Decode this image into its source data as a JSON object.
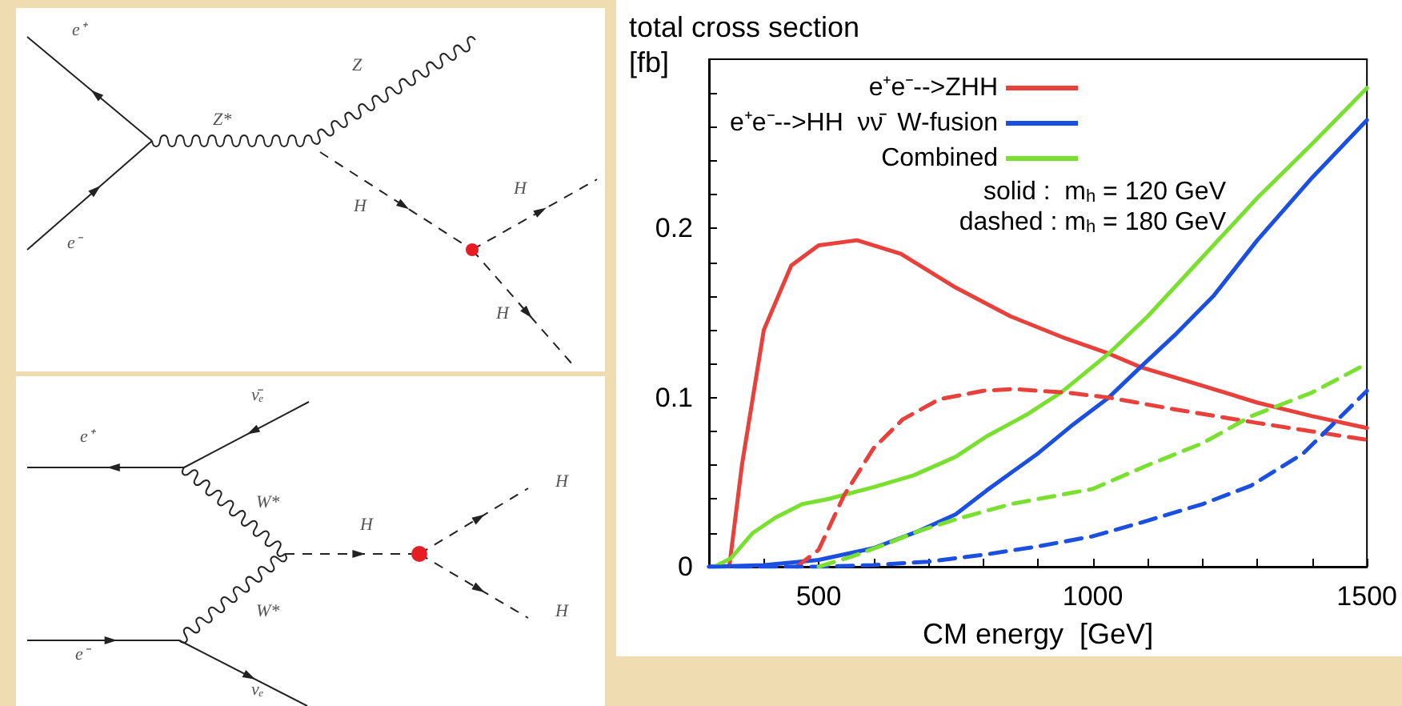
{
  "chart_data": [
    {
      "type": "other",
      "annotations": [
        "e⁺",
        "e⁻",
        "Z*",
        "Z",
        "H",
        "H",
        "H",
        "ν̄ₑ",
        "e⁺",
        "W*",
        "H",
        "H",
        "H",
        "W*",
        "e⁻",
        "νₑ"
      ]
    },
    {
      "type": "line",
      "ylabel": "total cross section [fb]",
      "xlabel": "CM energy  [GeV]",
      "xlim": [
        300,
        1500
      ],
      "ylim": [
        0,
        0.3
      ],
      "xticks": [
        {
          "value": 400,
          "label": null
        },
        500,
        {
          "value": 600,
          "label": null
        },
        {
          "value": 700,
          "label": null
        },
        {
          "value": 800,
          "label": null
        },
        {
          "value": 900,
          "label": null
        },
        1000,
        {
          "value": 1100,
          "label": null
        },
        {
          "value": 1200,
          "label": null
        },
        {
          "value": 1300,
          "label": null
        },
        {
          "value": 1400,
          "label": null
        },
        1500
      ],
      "yticks": [
        0,
        {
          "value": 0.02,
          "label": null
        },
        {
          "value": 0.04,
          "label": null
        },
        {
          "value": 0.06,
          "label": null
        },
        {
          "value": 0.08,
          "label": null
        },
        0.1,
        {
          "value": 0.12,
          "label": null
        },
        {
          "value": 0.14,
          "label": null
        },
        {
          "value": 0.16,
          "label": null
        },
        {
          "value": 0.18,
          "label": null
        },
        0.2,
        {
          "value": 0.22,
          "label": null
        },
        {
          "value": 0.24,
          "label": null
        },
        {
          "value": 0.26,
          "label": null
        },
        {
          "value": 0.28,
          "label": null
        }
      ],
      "grid": false,
      "legend": "top left",
      "marker": "none",
      "annotations": [
        "solid :  m$_{h}$ = 120 GeV",
        "dashed : m$_{h}$ = 180 GeV"
      ],
      "series": [
        {
          "name": "e⁺e⁻-->ZHH",
          "color": "#e8403a",
          "line_style": "solid",
          "x": [
            337,
            360,
            400,
            450,
            500,
            570,
            650,
            750,
            850,
            950,
            1029,
            1087,
            1200,
            1300,
            1400,
            1500
          ],
          "values": [
            0,
            0.06,
            0.14,
            0.178,
            0.19,
            0.193,
            0.185,
            0.165,
            0.148,
            0.135,
            0.126,
            0.118,
            0.107,
            0.097,
            0.089,
            0.082
          ]
        },
        {
          "name": "e⁺e⁻-->HH  νν̄  W-fusion",
          "color": "#1a4fe0",
          "line_style": "solid",
          "x": [
            300,
            400,
            500,
            600,
            682,
            750,
            806,
            900,
            960,
            1029,
            1087,
            1153,
            1220,
            1300,
            1400,
            1500
          ],
          "values": [
            0,
            0.001,
            0.004,
            0.011,
            0.021,
            0.031,
            0.045,
            0.067,
            0.083,
            0.1,
            0.118,
            0.138,
            0.16,
            0.193,
            0.23,
            0.264
          ]
        },
        {
          "name": "Combined",
          "color": "#7ae030",
          "line_style": "solid",
          "x": [
            310,
            340,
            380,
            421,
            470,
            517,
            600,
            673,
            750,
            806,
            880,
            942,
            1029,
            1100,
            1200,
            1300,
            1400,
            1500
          ],
          "values": [
            0,
            0.005,
            0.02,
            0.029,
            0.037,
            0.04,
            0.047,
            0.054,
            0.065,
            0.077,
            0.09,
            0.103,
            0.126,
            0.148,
            0.183,
            0.218,
            0.25,
            0.283
          ]
        },
        {
          "color": "#e8403a",
          "line_style": "dashed",
          "x": [
            460,
            500,
            546,
            600,
            653,
            720,
            800,
            855,
            950,
            1029,
            1150,
            1300,
            1400,
            1500
          ],
          "values": [
            0,
            0.01,
            0.042,
            0.07,
            0.087,
            0.099,
            0.104,
            0.105,
            0.103,
            0.1,
            0.093,
            0.085,
            0.08,
            0.075
          ]
        },
        {
          "color": "#1a4fe0",
          "line_style": "dashed",
          "x": [
            300,
            500,
            600,
            700,
            800,
            900,
            1000,
            1087,
            1200,
            1289,
            1384,
            1500
          ],
          "values": [
            0,
            0,
            0.001,
            0.003,
            0.007,
            0.012,
            0.018,
            0.026,
            0.037,
            0.048,
            0.067,
            0.104
          ]
        },
        {
          "color": "#7ae030",
          "line_style": "dashed",
          "x": [
            500,
            560,
            620,
            682,
            750,
            850,
            1000,
            1100,
            1200,
            1289,
            1400,
            1500
          ],
          "values": [
            0,
            0.006,
            0.013,
            0.021,
            0.028,
            0.037,
            0.046,
            0.06,
            0.073,
            0.089,
            0.103,
            0.12
          ]
        }
      ]
    }
  ]
}
